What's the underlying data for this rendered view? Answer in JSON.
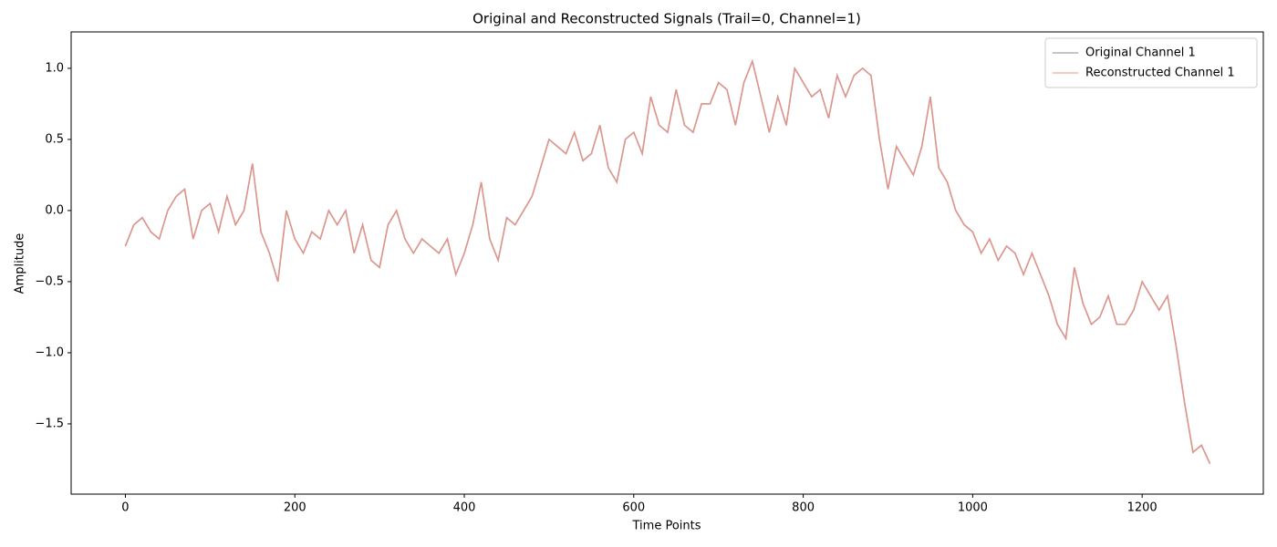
{
  "chart_data": {
    "type": "line",
    "title": "Original and Reconstructed Signals (Trail=0, Channel=1)",
    "x_label": "Time Points",
    "y_label": "Amplitude",
    "x": [
      0,
      10,
      20,
      30,
      40,
      50,
      60,
      70,
      80,
      90,
      100,
      110,
      120,
      130,
      140,
      150,
      160,
      170,
      180,
      190,
      200,
      210,
      220,
      230,
      240,
      250,
      260,
      270,
      280,
      290,
      300,
      310,
      320,
      330,
      340,
      350,
      360,
      370,
      380,
      390,
      400,
      410,
      420,
      430,
      440,
      450,
      460,
      470,
      480,
      490,
      500,
      510,
      520,
      530,
      540,
      550,
      560,
      570,
      580,
      590,
      600,
      610,
      620,
      630,
      640,
      650,
      660,
      670,
      680,
      690,
      700,
      710,
      720,
      730,
      740,
      750,
      760,
      770,
      780,
      790,
      800,
      810,
      820,
      830,
      840,
      850,
      860,
      870,
      880,
      890,
      900,
      910,
      920,
      930,
      940,
      950,
      960,
      970,
      980,
      990,
      1000,
      1010,
      1020,
      1030,
      1040,
      1050,
      1060,
      1070,
      1080,
      1090,
      1100,
      1110,
      1120,
      1130,
      1140,
      1150,
      1160,
      1170,
      1180,
      1190,
      1200,
      1210,
      1220,
      1230,
      1240,
      1250,
      1260,
      1270,
      1280
    ],
    "series": [
      {
        "name": "Original Channel 1",
        "color": "#808080",
        "values": [
          -0.25,
          -0.1,
          -0.05,
          -0.15,
          -0.2,
          0.0,
          0.1,
          0.15,
          -0.2,
          0.0,
          0.05,
          -0.15,
          0.1,
          -0.1,
          0.0,
          0.33,
          -0.15,
          -0.3,
          -0.5,
          0.0,
          -0.2,
          -0.3,
          -0.15,
          -0.2,
          0.0,
          -0.1,
          0.0,
          -0.3,
          -0.1,
          -0.35,
          -0.4,
          -0.1,
          0.0,
          -0.2,
          -0.3,
          -0.2,
          -0.25,
          -0.3,
          -0.2,
          -0.45,
          -0.3,
          -0.1,
          0.2,
          -0.2,
          -0.35,
          -0.05,
          -0.1,
          0.0,
          0.1,
          0.3,
          0.5,
          0.45,
          0.4,
          0.55,
          0.35,
          0.4,
          0.6,
          0.3,
          0.2,
          0.5,
          0.55,
          0.4,
          0.8,
          0.6,
          0.55,
          0.85,
          0.6,
          0.55,
          0.75,
          0.75,
          0.9,
          0.85,
          0.6,
          0.9,
          1.05,
          0.8,
          0.55,
          0.8,
          0.6,
          1.0,
          0.9,
          0.8,
          0.85,
          0.65,
          0.95,
          0.8,
          0.95,
          1.0,
          0.95,
          0.5,
          0.15,
          0.45,
          0.35,
          0.25,
          0.45,
          0.8,
          0.3,
          0.2,
          0.0,
          -0.1,
          -0.15,
          -0.3,
          -0.2,
          -0.35,
          -0.25,
          -0.3,
          -0.45,
          -0.3,
          -0.45,
          -0.6,
          -0.8,
          -0.9,
          -0.4,
          -0.65,
          -0.8,
          -0.75,
          -0.6,
          -0.8,
          -0.8,
          -0.7,
          -0.5,
          -0.6,
          -0.7,
          -0.6,
          -0.95,
          -1.35,
          -1.7,
          -1.65,
          -1.78
        ]
      },
      {
        "name": "Reconstructed Channel 1",
        "color": "#fa8072",
        "values": [
          -0.25,
          -0.1,
          -0.05,
          -0.15,
          -0.2,
          0.0,
          0.1,
          0.15,
          -0.2,
          0.0,
          0.05,
          -0.15,
          0.1,
          -0.1,
          0.0,
          0.33,
          -0.15,
          -0.3,
          -0.5,
          0.0,
          -0.2,
          -0.3,
          -0.15,
          -0.2,
          0.0,
          -0.1,
          0.0,
          -0.3,
          -0.1,
          -0.35,
          -0.4,
          -0.1,
          0.0,
          -0.2,
          -0.3,
          -0.2,
          -0.25,
          -0.3,
          -0.2,
          -0.45,
          -0.3,
          -0.1,
          0.2,
          -0.2,
          -0.35,
          -0.05,
          -0.1,
          0.0,
          0.1,
          0.3,
          0.5,
          0.45,
          0.4,
          0.55,
          0.35,
          0.4,
          0.6,
          0.3,
          0.2,
          0.5,
          0.55,
          0.4,
          0.8,
          0.6,
          0.55,
          0.85,
          0.6,
          0.55,
          0.75,
          0.75,
          0.9,
          0.85,
          0.6,
          0.9,
          1.05,
          0.8,
          0.55,
          0.8,
          0.6,
          1.0,
          0.9,
          0.8,
          0.85,
          0.65,
          0.95,
          0.8,
          0.95,
          1.0,
          0.95,
          0.5,
          0.15,
          0.45,
          0.35,
          0.25,
          0.45,
          0.8,
          0.3,
          0.2,
          0.0,
          -0.1,
          -0.15,
          -0.3,
          -0.2,
          -0.35,
          -0.25,
          -0.3,
          -0.45,
          -0.3,
          -0.45,
          -0.6,
          -0.8,
          -0.9,
          -0.4,
          -0.65,
          -0.8,
          -0.75,
          -0.6,
          -0.8,
          -0.8,
          -0.7,
          -0.5,
          -0.6,
          -0.7,
          -0.6,
          -0.95,
          -1.35,
          -1.7,
          -1.65,
          -1.78
        ]
      }
    ],
    "xlim": [
      -64,
      1343
    ],
    "ylim": [
      -1.994,
      1.256
    ],
    "xticks": [
      0,
      200,
      400,
      600,
      800,
      1000,
      1200
    ],
    "yticks": [
      {
        "value": -1.5,
        "label": "−1.5"
      },
      {
        "value": -1.0,
        "label": "−1.0"
      },
      {
        "value": -0.5,
        "label": "−0.5"
      },
      {
        "value": 0,
        "label": "0.0"
      },
      {
        "value": 0.5,
        "label": "0.5"
      },
      {
        "value": 1.0,
        "label": "1.0"
      }
    ],
    "legend": "upper right",
    "grid": false
  }
}
